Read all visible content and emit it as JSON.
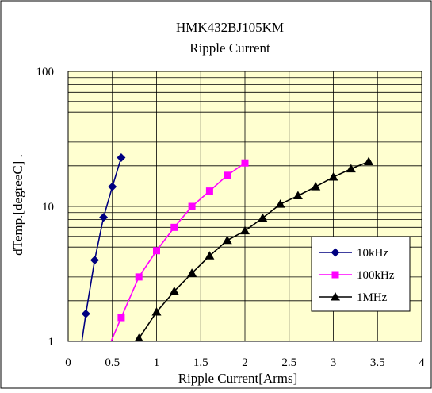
{
  "chart_data": {
    "type": "line",
    "title": "HMK432BJ105KM",
    "subtitle": "Ripple Current",
    "xlabel": "Ripple Current[Arms]",
    "ylabel": "dTemp.[degreeC] .",
    "xlim": [
      0,
      4
    ],
    "ylim": [
      1,
      100
    ],
    "yscale": "log",
    "xticks": [
      "0",
      "0.5",
      "1",
      "1.5",
      "2",
      "2.5",
      "3",
      "3.5",
      "4"
    ],
    "yticks": [
      "1",
      "10",
      "100"
    ],
    "grid": true,
    "legend_position": "bottom-right",
    "plot_background": "#ffffd0",
    "series": [
      {
        "name": "10kHz",
        "color": "#000080",
        "marker": "diamond",
        "x": [
          0.15,
          0.2,
          0.3,
          0.4,
          0.5,
          0.6
        ],
        "y": [
          0.95,
          1.6,
          4.0,
          8.3,
          14.0,
          23.0
        ]
      },
      {
        "name": "100kHz",
        "color": "#ff00ff",
        "marker": "square",
        "x": [
          0.48,
          0.6,
          0.8,
          1.0,
          1.2,
          1.4,
          1.6,
          1.8,
          2.0
        ],
        "y": [
          0.98,
          1.5,
          3.0,
          4.7,
          7.0,
          10.0,
          13.0,
          17.0,
          21.0
        ]
      },
      {
        "name": "1MHz",
        "color": "#000000",
        "marker": "triangle",
        "x": [
          0.75,
          0.8,
          1.0,
          1.2,
          1.4,
          1.6,
          1.8,
          2.0,
          2.2,
          2.4,
          2.6,
          2.8,
          3.0,
          3.2,
          3.4
        ],
        "y": [
          0.97,
          1.05,
          1.65,
          2.35,
          3.2,
          4.3,
          5.6,
          6.6,
          8.2,
          10.4,
          12.0,
          14.0,
          16.5,
          19.0,
          21.5
        ]
      }
    ]
  }
}
